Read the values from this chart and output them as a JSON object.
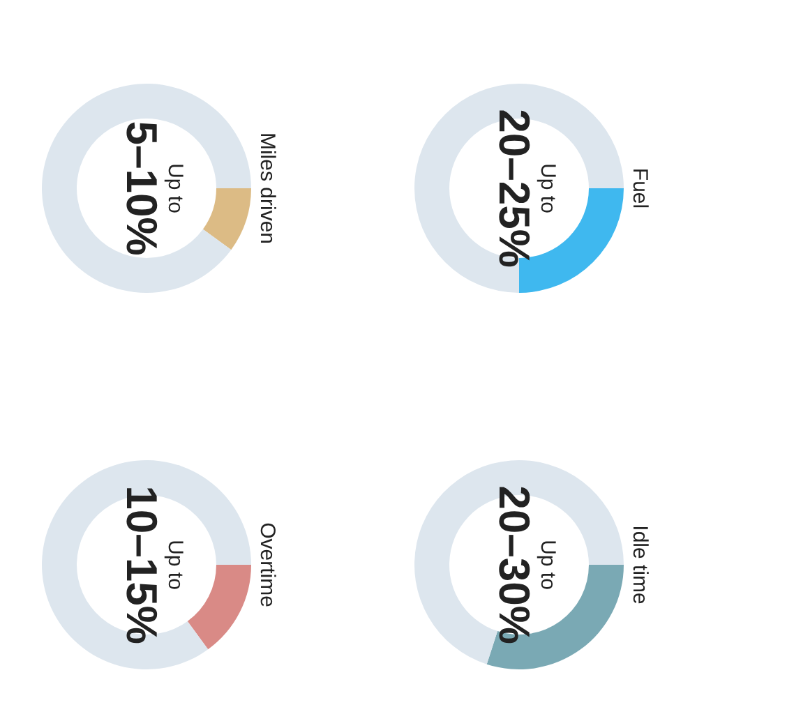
{
  "chart_data": [
    {
      "type": "donut",
      "title": "Fuel",
      "categories": [
        null,
        null
      ],
      "values": [
        25,
        75
      ],
      "colors": [
        "#3fb8ef",
        "#dde6ee"
      ],
      "annotations": [
        "Up to",
        "20–25%"
      ]
    },
    {
      "type": "donut",
      "title": "Idle time",
      "categories": [
        null,
        null
      ],
      "values": [
        30,
        70
      ],
      "colors": [
        "#7aa9b4",
        "#dde6ee"
      ],
      "annotations": [
        "Up to",
        "20–30%"
      ]
    },
    {
      "type": "donut",
      "title": "Miles driven",
      "categories": [
        null,
        null
      ],
      "values": [
        10,
        90
      ],
      "colors": [
        "#dcbb85",
        "#dde6ee"
      ],
      "annotations": [
        "Up to",
        "5–10%"
      ]
    },
    {
      "type": "donut",
      "title": "Overtime",
      "categories": [
        null,
        null
      ],
      "values": [
        15,
        85
      ],
      "colors": [
        "#d98a86",
        "#dde6ee"
      ],
      "annotations": [
        "Up to",
        "10–15%"
      ]
    }
  ]
}
